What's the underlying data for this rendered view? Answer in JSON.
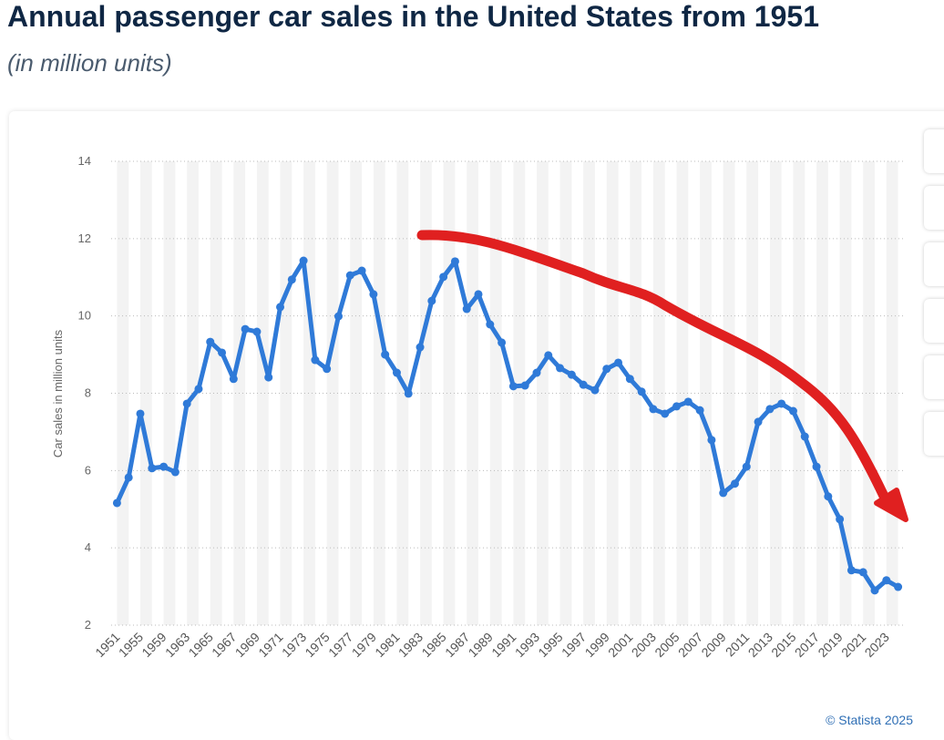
{
  "chart_data": {
    "type": "line",
    "title": "Annual passenger car sales in the United States from 1951",
    "subtitle": "(in million units)",
    "y_label": "Car sales in million units",
    "source": "© Statista 2025",
    "categories": [
      "1951",
      null,
      "1955",
      null,
      "1959",
      null,
      "1963",
      null,
      "1965",
      null,
      "1967",
      null,
      "1969",
      null,
      "1971",
      null,
      "1973",
      null,
      "1975",
      null,
      "1977",
      null,
      "1979",
      null,
      "1981",
      null,
      "1983",
      null,
      "1985",
      null,
      "1987",
      null,
      "1989",
      null,
      "1991",
      null,
      "1993",
      null,
      "1995",
      null,
      "1997",
      null,
      "1999",
      null,
      "2001",
      null,
      "2003",
      null,
      "2005",
      null,
      "2007",
      null,
      "2009",
      null,
      "2011",
      null,
      "2013",
      null,
      "2015",
      null,
      "2017",
      null,
      "2019",
      null,
      "2021",
      null,
      "2023",
      null
    ],
    "series": [
      {
        "name": "Car sales",
        "color": "#2f7ad8",
        "values": [
          5.16,
          5.82,
          7.47,
          6.06,
          6.1,
          5.96,
          7.73,
          8.11,
          9.33,
          9.05,
          8.37,
          9.66,
          9.59,
          8.41,
          10.23,
          10.94,
          11.43,
          8.86,
          8.63,
          9.99,
          11.05,
          11.17,
          10.56,
          9.0,
          8.53,
          7.99,
          9.19,
          10.39,
          11.01,
          11.41,
          10.18,
          10.56,
          9.78,
          9.31,
          8.18,
          8.2,
          8.53,
          8.98,
          8.65,
          8.48,
          8.22,
          8.08,
          8.63,
          8.79,
          8.37,
          8.04,
          7.59,
          7.47,
          7.66,
          7.78,
          7.56,
          6.79,
          5.42,
          5.66,
          6.1,
          7.26,
          7.59,
          7.73,
          7.54,
          6.88,
          6.1,
          5.33,
          4.74,
          3.42,
          3.37,
          2.9,
          3.16,
          2.99
        ]
      }
    ],
    "ylim": [
      2,
      14
    ],
    "yticks": [
      2,
      4,
      6,
      8,
      10,
      12,
      14
    ],
    "grid": true
  }
}
